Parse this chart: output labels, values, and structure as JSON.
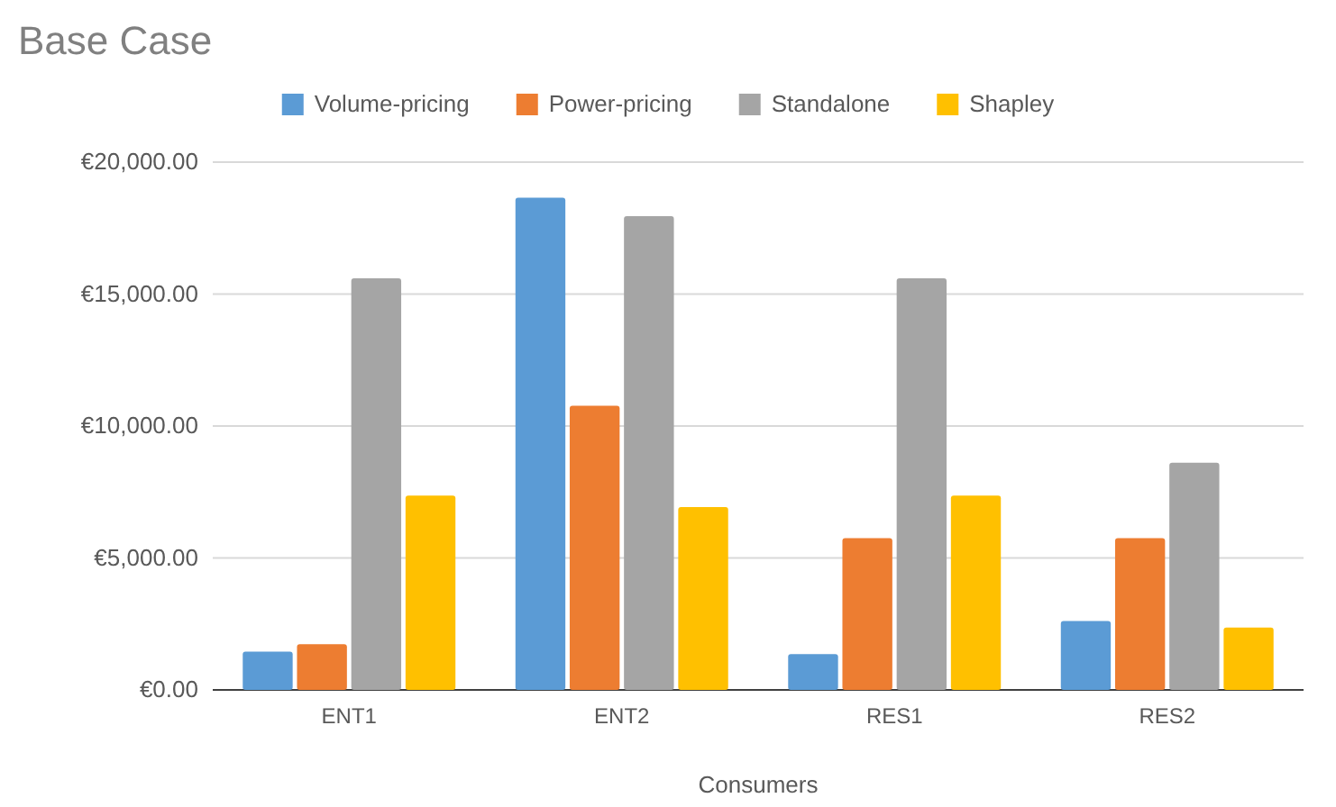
{
  "chart_data": {
    "type": "bar",
    "title": "Base Case",
    "xlabel": "Consumers",
    "categories": [
      "ENT1",
      "ENT2",
      "RES1",
      "RES2"
    ],
    "series": [
      {
        "name": "Volume-pricing",
        "color": "#5b9bd5",
        "values": [
          1450,
          18650,
          1360,
          2610
        ]
      },
      {
        "name": "Power-pricing",
        "color": "#ed7d31",
        "values": [
          1730,
          10770,
          5750,
          5750
        ]
      },
      {
        "name": "Standalone",
        "color": "#a5a5a5",
        "values": [
          15600,
          17950,
          15600,
          8610
        ]
      },
      {
        "name": "Shapley",
        "color": "#ffc000",
        "values": [
          7360,
          6930,
          7360,
          2360
        ]
      }
    ],
    "ylim": [
      0,
      20000
    ],
    "yticks": [
      {
        "value": 0,
        "label": "€0.00"
      },
      {
        "value": 5000,
        "label": "€5,000.00"
      },
      {
        "value": 10000,
        "label": "€10,000.00"
      },
      {
        "value": 15000,
        "label": "€15,000.00"
      },
      {
        "value": 20000,
        "label": "€20,000.00"
      }
    ],
    "grid": "y",
    "legend": "top"
  }
}
